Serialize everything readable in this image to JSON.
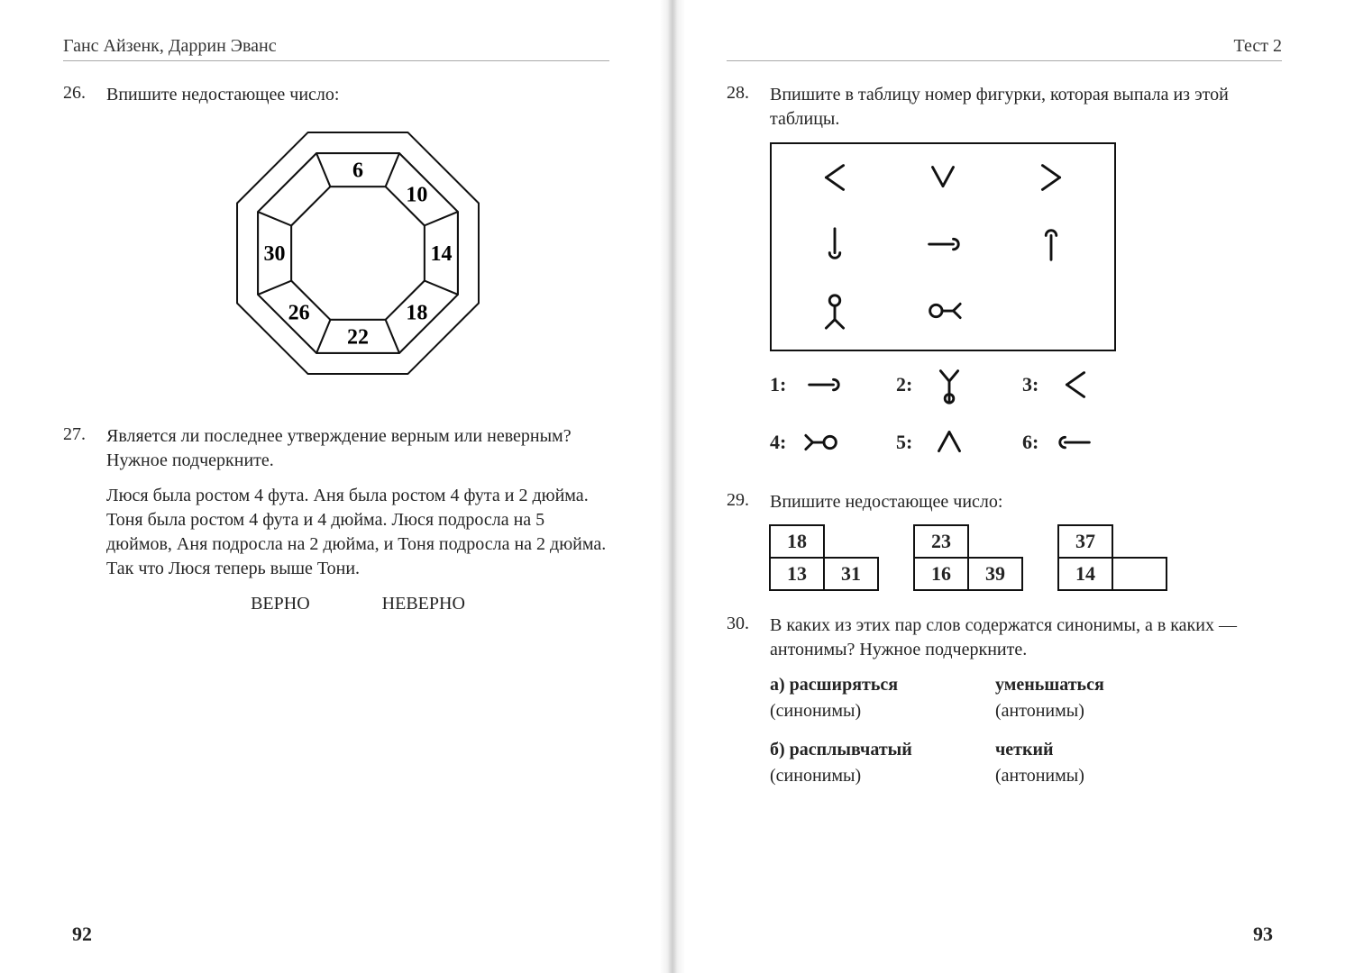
{
  "colors": {
    "ink": "#242424",
    "stroke": "#111111",
    "paper": "#ffffff",
    "rule": "#aaaaaa"
  },
  "typography": {
    "family": "Times New Roman",
    "body_pt": 20,
    "num_pt": 20,
    "pageno_pt": 22,
    "cell_pt": 22
  },
  "left": {
    "running_head": "Ганс Айзенк, Даррин Эванс",
    "page_number": "92",
    "q26": {
      "number": "26.",
      "prompt": "Впишите недостающее число:",
      "diagram": {
        "type": "octagon-ring",
        "segments": 8,
        "values": [
          "6",
          "10",
          "14",
          "18",
          "22",
          "26",
          "30",
          ""
        ],
        "blank_index": 7,
        "start_angle_deg": -67.5,
        "font_size": 24,
        "font_weight": "bold",
        "stroke_color": "#111111",
        "stroke_width": 2,
        "fill": "#ffffff"
      }
    },
    "q27": {
      "number": "27.",
      "prompt": "Является ли последнее утверждение верным или невер­ным? Нужное подчеркните.",
      "text": "Люся была ростом 4 фута. Аня была ростом 4 фута и 2 дюйма. Тоня была ростом 4 фута и 4 дюйма. Люся подросла на 5 дюймов, Аня подросла на 2 дюйма, и Тоня подросла на 2 дюйма. Так что Люся теперь выше Тони.",
      "option_true": "ВЕРНО",
      "option_false": "НЕВЕРНО"
    }
  },
  "right": {
    "running_head": "Тест 2",
    "page_number": "93",
    "q28": {
      "number": "28.",
      "prompt": "Впишите в таблицу номер фигурки, которая выпала из этой таблицы.",
      "grid": {
        "type": "symbol-grid",
        "rows": 3,
        "cols": 3,
        "box_border_color": "#111111",
        "box_border_width": 2,
        "cells": [
          {
            "r": 0,
            "c": 0,
            "glyph": "angle-left"
          },
          {
            "r": 0,
            "c": 1,
            "glyph": "vee"
          },
          {
            "r": 0,
            "c": 2,
            "glyph": "angle-right"
          },
          {
            "r": 1,
            "c": 0,
            "glyph": "wrench-down"
          },
          {
            "r": 1,
            "c": 1,
            "glyph": "wrench-hori"
          },
          {
            "r": 1,
            "c": 2,
            "glyph": "wrench-up"
          },
          {
            "r": 2,
            "c": 0,
            "glyph": "stick-person"
          },
          {
            "r": 2,
            "c": 1,
            "glyph": "circle-fork-right"
          },
          {
            "r": 2,
            "c": 2,
            "glyph": "blank"
          }
        ]
      },
      "options": [
        {
          "label": "1:",
          "glyph": "wrench-hori"
        },
        {
          "label": "2:",
          "glyph": "fork-up"
        },
        {
          "label": "3:",
          "glyph": "angle-left"
        },
        {
          "label": "4:",
          "glyph": "circle-fork-left"
        },
        {
          "label": "5:",
          "glyph": "caret-up"
        },
        {
          "label": "6:",
          "glyph": "wrench-hori-rev"
        }
      ]
    },
    "q29": {
      "number": "29.",
      "prompt": "Впишите недостающее число:",
      "tables": {
        "type": "table",
        "layout": "three mini 2×2 tables side by side; top-right cell no border",
        "cell_border_color": "#111111",
        "cell_border_width": 2,
        "groups": [
          {
            "top_left": "18",
            "top_right": "",
            "bottom_left": "13",
            "bottom_right": "31"
          },
          {
            "top_left": "23",
            "top_right": "",
            "bottom_left": "16",
            "bottom_right": "39"
          },
          {
            "top_left": "37",
            "top_right": "",
            "bottom_left": "14",
            "bottom_right": ""
          }
        ]
      }
    },
    "q30": {
      "number": "30.",
      "prompt": "В каких из этих пар слов содержатся синонимы, а в ка­ких — антонимы? Нужное подчеркните.",
      "pairs": [
        {
          "label": "а)",
          "word_a": "расширяться",
          "word_b": "уменьшаться",
          "choice_a": "(синонимы)",
          "choice_b": "(антонимы)"
        },
        {
          "label": "б)",
          "word_a": "расплывчатый",
          "word_b": "четкий",
          "choice_a": "(синонимы)",
          "choice_b": "(антонимы)"
        }
      ]
    }
  }
}
